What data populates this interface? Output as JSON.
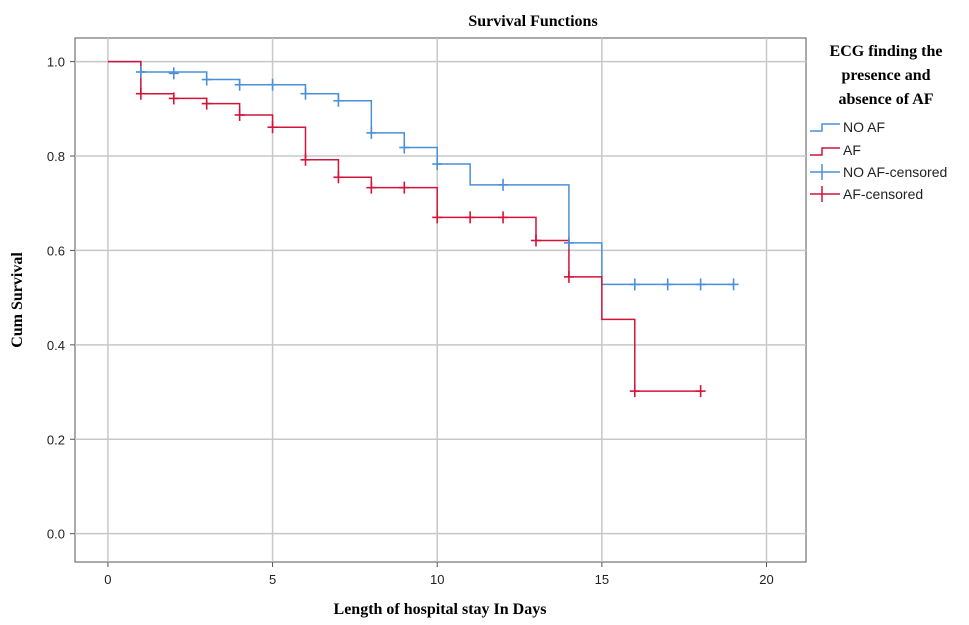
{
  "chart_data": {
    "type": "line",
    "title": "Survival Functions",
    "xlabel": "Length of hospital stay In Days",
    "ylabel": "Cum Survival",
    "xlim": [
      -1,
      21.2
    ],
    "ylim": [
      -0.06,
      1.05
    ],
    "x_ticks": [
      0,
      5,
      10,
      15,
      20
    ],
    "y_ticks": [
      0.0,
      0.2,
      0.4,
      0.6,
      0.8,
      1.0
    ],
    "x_tick_labels": [
      "0",
      "5",
      "10",
      "15",
      "20"
    ],
    "y_tick_labels": [
      "0.0",
      "0.2",
      "0.4",
      "0.6",
      "0.8",
      "1.0"
    ],
    "grid": true,
    "legend_position": "right",
    "legend": {
      "title_lines": [
        "ECG finding the",
        "presence and",
        "absence of AF"
      ],
      "entries": [
        "NO AF",
        "AF",
        "NO AF-censored",
        "AF-censored"
      ]
    },
    "series": [
      {
        "name": "NO AF",
        "color": "#4a90d9",
        "steps": [
          [
            0,
            1.0
          ],
          [
            1,
            0.978
          ],
          [
            3,
            0.962
          ],
          [
            4,
            0.951
          ],
          [
            6,
            0.932
          ],
          [
            7,
            0.917
          ],
          [
            8,
            0.849
          ],
          [
            9,
            0.818
          ],
          [
            10,
            0.783
          ],
          [
            11,
            0.739
          ],
          [
            14,
            0.616
          ],
          [
            15,
            0.528
          ],
          [
            19,
            0.528
          ]
        ],
        "censored": [
          [
            1,
            0.978
          ],
          [
            2,
            0.975
          ],
          [
            3,
            0.962
          ],
          [
            4,
            0.951
          ],
          [
            5,
            0.951
          ],
          [
            6,
            0.932
          ],
          [
            7,
            0.917
          ],
          [
            8,
            0.849
          ],
          [
            9,
            0.818
          ],
          [
            10,
            0.783
          ],
          [
            12,
            0.739
          ],
          [
            14,
            0.616
          ],
          [
            16,
            0.528
          ],
          [
            17,
            0.528
          ],
          [
            18,
            0.528
          ],
          [
            19,
            0.528
          ]
        ]
      },
      {
        "name": "AF",
        "color": "#d2143a",
        "steps": [
          [
            0,
            1.0
          ],
          [
            1,
            0.932
          ],
          [
            2,
            0.922
          ],
          [
            3,
            0.911
          ],
          [
            4,
            0.887
          ],
          [
            5,
            0.861
          ],
          [
            6,
            0.792
          ],
          [
            7,
            0.755
          ],
          [
            8,
            0.733
          ],
          [
            10,
            0.67
          ],
          [
            13,
            0.621
          ],
          [
            14,
            0.544
          ],
          [
            15,
            0.454
          ],
          [
            16,
            0.302
          ],
          [
            18,
            0.302
          ]
        ],
        "censored": [
          [
            1,
            0.932
          ],
          [
            2,
            0.922
          ],
          [
            3,
            0.911
          ],
          [
            4,
            0.887
          ],
          [
            5,
            0.861
          ],
          [
            6,
            0.792
          ],
          [
            7,
            0.755
          ],
          [
            8,
            0.733
          ],
          [
            9,
            0.733
          ],
          [
            10,
            0.67
          ],
          [
            11,
            0.67
          ],
          [
            12,
            0.67
          ],
          [
            13,
            0.621
          ],
          [
            14,
            0.544
          ],
          [
            16,
            0.302
          ],
          [
            18,
            0.302
          ]
        ]
      }
    ]
  }
}
